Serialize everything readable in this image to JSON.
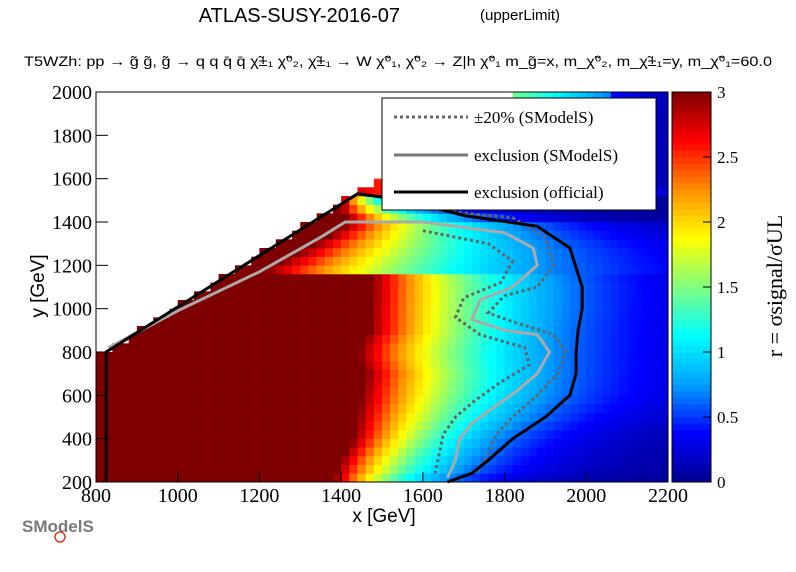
{
  "header": {
    "title": "ATLAS-SUSY-2016-07",
    "title_tag": "(upperLimit)",
    "subtitle": "T5WZh: pp  → g̃ g̃, g̃  → q q q̄ q̄ χ̃±₁ χ̃⁰₂, χ̃±₁ → W χ̃⁰₁, χ̃⁰₂ → Z|h χ̃⁰₁ m_g̃=x, m_χ̃⁰₂, m_χ̃±₁=y, m_χ̃⁰₁=60.0"
  },
  "logo": {
    "text": "SModelS"
  },
  "chart_data": {
    "type": "heatmap",
    "title": "ATLAS-SUSY-2016-07",
    "xlabel": "x [GeV]",
    "ylabel": "y [GeV]",
    "zlabel": "r = σsignal/σUL",
    "xlim": [
      800,
      2200
    ],
    "ylim": [
      200,
      2000
    ],
    "zlim": [
      0,
      3
    ],
    "xticks": [
      800,
      1000,
      1200,
      1400,
      1600,
      1800,
      2000,
      2200
    ],
    "yticks": [
      200,
      400,
      600,
      800,
      1000,
      1200,
      1400,
      1600,
      1800,
      2000
    ],
    "zticks": [
      0,
      0.5,
      1,
      1.5,
      2,
      2.5,
      3
    ],
    "xtick_labels": [
      "800",
      "1000",
      "1200",
      "1400",
      "1600",
      "1800",
      "2000",
      "2200"
    ],
    "ytick_labels": [
      "200",
      "400",
      "600",
      "800",
      "1000",
      "1200",
      "1400",
      "1600",
      "1800",
      "2000"
    ],
    "ztick_labels": [
      "0",
      "0.5",
      "1",
      "1.5",
      "2",
      "2.5",
      "3"
    ],
    "colormap": [
      "#00008f",
      "#0000ff",
      "#00a0ff",
      "#00ffff",
      "#7fff7f",
      "#ffff00",
      "#ff8f00",
      "#ff0000",
      "#7f0000"
    ],
    "grid": false,
    "legend_position": "top-right",
    "legend": [
      {
        "label": "±20% (SModelS)",
        "style": "dotted",
        "color": "#666666"
      },
      {
        "label": "exclusion (SModelS)",
        "style": "solid",
        "color": "#777777"
      },
      {
        "label": "exclusion (official)",
        "style": "solid",
        "color": "#000000"
      }
    ],
    "exclusion_official": [
      [
        825,
        200
      ],
      [
        825,
        800
      ],
      [
        1440,
        1530
      ],
      [
        1560,
        1500
      ],
      [
        1700,
        1430
      ],
      [
        1880,
        1380
      ],
      [
        1960,
        1280
      ],
      [
        1990,
        1100
      ],
      [
        1990,
        1000
      ],
      [
        1980,
        900
      ],
      [
        1975,
        800
      ],
      [
        1975,
        700
      ],
      [
        1960,
        600
      ],
      [
        1900,
        500
      ],
      [
        1820,
        400
      ],
      [
        1760,
        300
      ],
      [
        1720,
        240
      ],
      [
        1660,
        200
      ]
    ],
    "exclusion_smodels": [
      [
        830,
        820
      ],
      [
        1000,
        990
      ],
      [
        1200,
        1170
      ],
      [
        1350,
        1330
      ],
      [
        1410,
        1400
      ],
      [
        1600,
        1400
      ],
      [
        1800,
        1350
      ],
      [
        1870,
        1280
      ],
      [
        1880,
        1200
      ],
      [
        1820,
        1100
      ],
      [
        1740,
        1040
      ],
      [
        1720,
        950
      ],
      [
        1800,
        900
      ],
      [
        1880,
        880
      ],
      [
        1910,
        800
      ],
      [
        1880,
        700
      ],
      [
        1830,
        620
      ],
      [
        1770,
        540
      ],
      [
        1720,
        470
      ],
      [
        1690,
        400
      ],
      [
        1680,
        300
      ],
      [
        1660,
        220
      ]
    ],
    "band_upper": [
      [
        1600,
        1460
      ],
      [
        1820,
        1420
      ],
      [
        1900,
        1330
      ],
      [
        1920,
        1200
      ],
      [
        1880,
        1100
      ],
      [
        1800,
        1060
      ],
      [
        1760,
        980
      ],
      [
        1820,
        940
      ],
      [
        1920,
        880
      ],
      [
        1950,
        800
      ],
      [
        1930,
        700
      ],
      [
        1880,
        600
      ],
      [
        1820,
        500
      ],
      [
        1780,
        420
      ],
      [
        1760,
        330
      ],
      [
        1730,
        240
      ]
    ],
    "band_lower": [
      [
        1600,
        1360
      ],
      [
        1760,
        1300
      ],
      [
        1820,
        1220
      ],
      [
        1790,
        1120
      ],
      [
        1700,
        1050
      ],
      [
        1680,
        960
      ],
      [
        1740,
        880
      ],
      [
        1850,
        820
      ],
      [
        1860,
        740
      ],
      [
        1790,
        660
      ],
      [
        1730,
        580
      ],
      [
        1680,
        500
      ],
      [
        1650,
        420
      ],
      [
        1640,
        330
      ],
      [
        1630,
        240
      ]
    ],
    "filled_region_max": [
      [
        800,
        200
      ],
      [
        800,
        800
      ],
      [
        1000,
        980
      ],
      [
        1200,
        1160
      ],
      [
        1400,
        1370
      ],
      [
        1420,
        1440
      ],
      [
        1480,
        1400
      ],
      [
        1470,
        900
      ],
      [
        1440,
        800
      ],
      [
        1460,
        700
      ],
      [
        1450,
        600
      ],
      [
        1440,
        500
      ],
      [
        1430,
        400
      ],
      [
        1400,
        300
      ],
      [
        1380,
        200
      ]
    ]
  }
}
